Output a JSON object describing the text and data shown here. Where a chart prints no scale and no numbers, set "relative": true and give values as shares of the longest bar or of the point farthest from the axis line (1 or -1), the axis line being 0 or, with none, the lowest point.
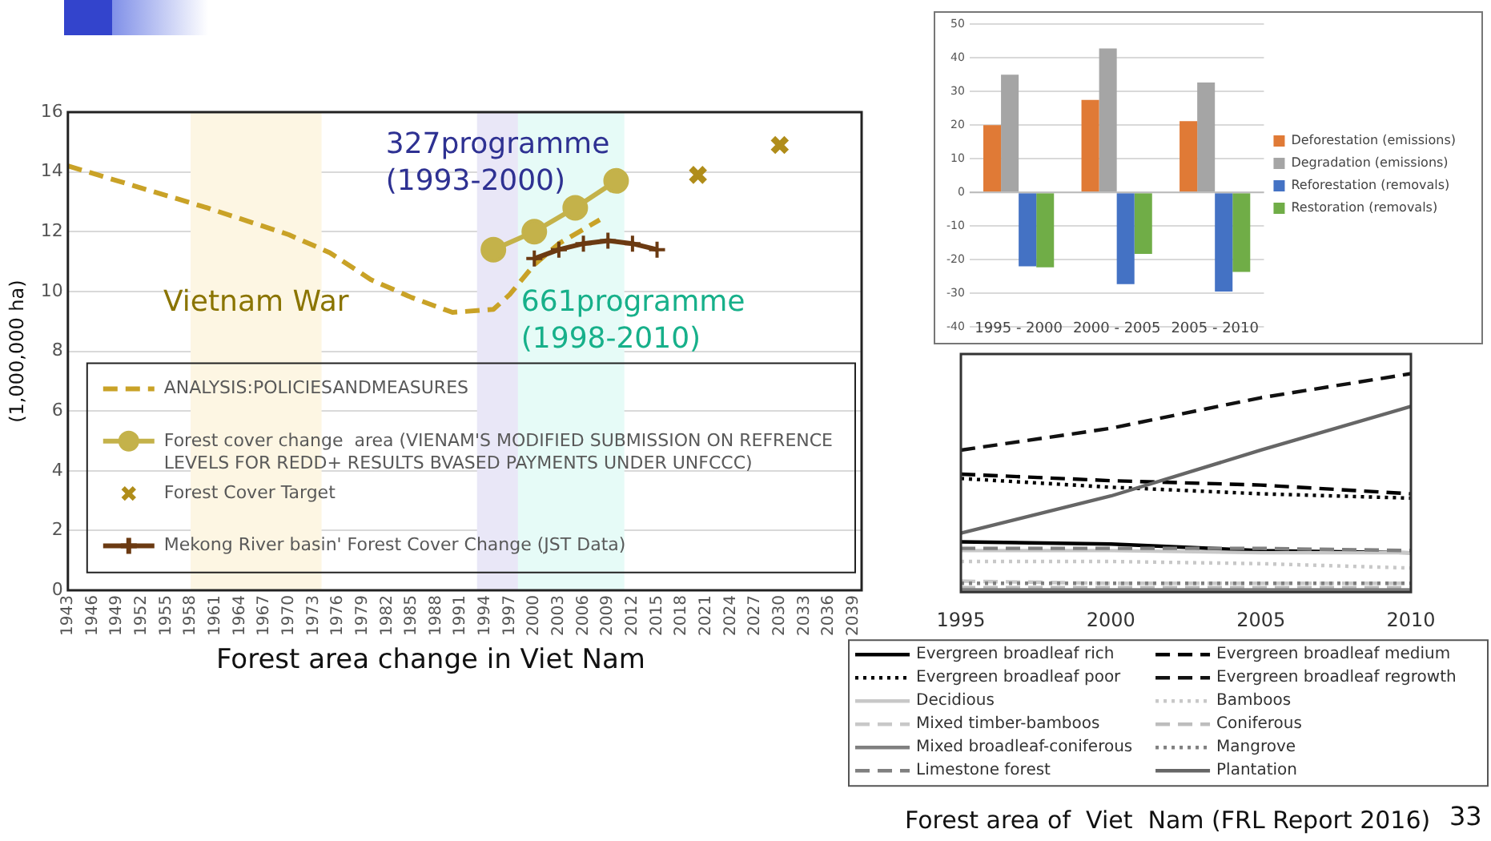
{
  "chart_data": [
    {
      "type": "line",
      "title": "Forest area change in Viet Nam",
      "ylabel": "(1,000,000 ha)",
      "xlim": [
        1943,
        2040
      ],
      "xticks": [
        1943,
        1946,
        1949,
        1952,
        1955,
        1958,
        1961,
        1964,
        1967,
        1970,
        1973,
        1976,
        1979,
        1982,
        1985,
        1988,
        1991,
        1994,
        1997,
        2000,
        2003,
        2006,
        2009,
        2012,
        2015,
        2018,
        2021,
        2024,
        2027,
        2030,
        2033,
        2036,
        2039
      ],
      "ylim": [
        0,
        16
      ],
      "yticks": [
        0,
        2,
        4,
        6,
        8,
        10,
        12,
        14,
        16
      ],
      "grid": "y",
      "legend": "bottom",
      "bands": [
        {
          "axis": "x",
          "from": 1958,
          "to": 1974,
          "label": "Vietnam War",
          "color": "#fdf6e3"
        },
        {
          "axis": "x",
          "from": 1993,
          "to": 2000,
          "label": "327programme\n(1993-2000)",
          "color": "#e9e7f7"
        },
        {
          "axis": "x",
          "from": 1998,
          "to": 2011,
          "label": "661programme\n(1998-2010)",
          "color": "#e6fbf7"
        }
      ],
      "series": [
        {
          "name": "ANALYSIS:POLICIESANDMEASURES",
          "type": "line",
          "line_style": "dashed",
          "marker": "none",
          "color": "#c9a227",
          "x": [
            1943,
            1960,
            1970,
            1975,
            1980,
            1985,
            1990,
            1995,
            1997,
            2000,
            2003,
            2008
          ],
          "values": [
            14.2,
            12.8,
            11.9,
            11.3,
            10.4,
            9.8,
            9.3,
            9.4,
            9.9,
            10.9,
            11.6,
            12.4
          ]
        },
        {
          "name": "Forest cover change  area (VIENAM'S MODIFIED SUBMISSION ON REFRENCE LEVELS FOR REDD+ RESULTS BVASED PAYMENTS UNDER UNFCCC)",
          "type": "line",
          "line_style": "solid",
          "marker": "circle",
          "color": "#c4b24a",
          "x": [
            1995,
            2000,
            2005,
            2010
          ],
          "values": [
            11.4,
            12.0,
            12.8,
            13.7
          ]
        },
        {
          "name": "Forest Cover Target",
          "type": "scatter",
          "marker": "cross",
          "color": "#b08d1a",
          "x": [
            2020,
            2030
          ],
          "values": [
            13.9,
            14.9
          ]
        },
        {
          "name": "Mekong River basin' Forest Cover Change (JST Data)",
          "type": "line",
          "line_style": "solid",
          "marker": "cross",
          "color": "#6b3a12",
          "x": [
            2000,
            2003,
            2006,
            2009,
            2012,
            2015
          ],
          "values": [
            11.1,
            11.4,
            11.6,
            11.7,
            11.6,
            11.4
          ]
        }
      ]
    },
    {
      "type": "bar",
      "categories": [
        "1995 - 2000",
        "2000 - 2005",
        "2005 - 2010"
      ],
      "ylim": [
        -40,
        50
      ],
      "yticks": [
        -40,
        -30,
        -20,
        -10,
        0,
        10,
        20,
        30,
        40,
        50
      ],
      "grid": "y",
      "legend": "right",
      "series": [
        {
          "name": "Deforestation (emissions)",
          "color": "#e07a36",
          "values": [
            20,
            27.5,
            21.2
          ]
        },
        {
          "name": "Degradation (emissions)",
          "color": "#a5a5a5",
          "values": [
            35,
            42.8,
            32.7
          ]
        },
        {
          "name": "Reforestation (removals)",
          "color": "#4472c4",
          "values": [
            -22,
            -27.3,
            -29.5
          ]
        },
        {
          "name": "Restoration (removals)",
          "color": "#70ad47",
          "values": [
            -22.3,
            -18.3,
            -23.7
          ]
        }
      ]
    },
    {
      "type": "line",
      "title": "Forest area of  Viet  Nam (FRL Report 2016)",
      "categories": [
        "1995",
        "2000",
        "2005",
        "2010"
      ],
      "relative": true,
      "legend": "bottom",
      "annotations": [
        "33"
      ],
      "series": [
        {
          "name": "Evergreen broadleaf rich",
          "color": "#000000",
          "line_style": "solid",
          "values": [
            0.23,
            0.22,
            0.19,
            0.18
          ]
        },
        {
          "name": "Evergreen broadleaf medium",
          "color": "#000000",
          "line_style": "dashed",
          "values": [
            0.54,
            0.51,
            0.49,
            0.45
          ]
        },
        {
          "name": "Evergreen broadleaf poor",
          "color": "#000000",
          "line_style": "dotted",
          "values": [
            0.52,
            0.48,
            0.45,
            0.43
          ]
        },
        {
          "name": "Evergreen broadleaf regrowth",
          "color": "#111111",
          "line_style": "dashed",
          "values": [
            0.65,
            0.75,
            0.89,
            1
          ]
        },
        {
          "name": "Decidious",
          "color": "#c8c8c8",
          "line_style": "solid",
          "values": [
            0.19,
            0.19,
            0.18,
            0.18
          ]
        },
        {
          "name": "Bamboos",
          "color": "#c8c8c8",
          "line_style": "dotted",
          "values": [
            0.14,
            0.14,
            0.13,
            0.11
          ]
        },
        {
          "name": "Mixed timber-bamboos",
          "color": "#c8c8c8",
          "line_style": "dashed",
          "values": [
            0.05,
            0.04,
            0.04,
            0.04
          ]
        },
        {
          "name": "Coniferous",
          "color": "#bdbdbd",
          "line_style": "dashed",
          "values": [
            0.02,
            0.02,
            0.02,
            0.02
          ]
        },
        {
          "name": "Mixed broadleaf-coniferous",
          "color": "#808080",
          "line_style": "solid",
          "values": [
            0.01,
            0.01,
            0.01,
            0.01
          ]
        },
        {
          "name": "Mangrove",
          "color": "#808080",
          "line_style": "dotted",
          "values": [
            0.04,
            0.04,
            0.04,
            0.04
          ]
        },
        {
          "name": "Limestone forest",
          "color": "#808080",
          "line_style": "dashed",
          "values": [
            0.2,
            0.2,
            0.2,
            0.19
          ]
        },
        {
          "name": "Plantation",
          "color": "#666666",
          "line_style": "solid",
          "values": [
            0.27,
            0.44,
            0.65,
            0.85
          ]
        }
      ]
    }
  ]
}
